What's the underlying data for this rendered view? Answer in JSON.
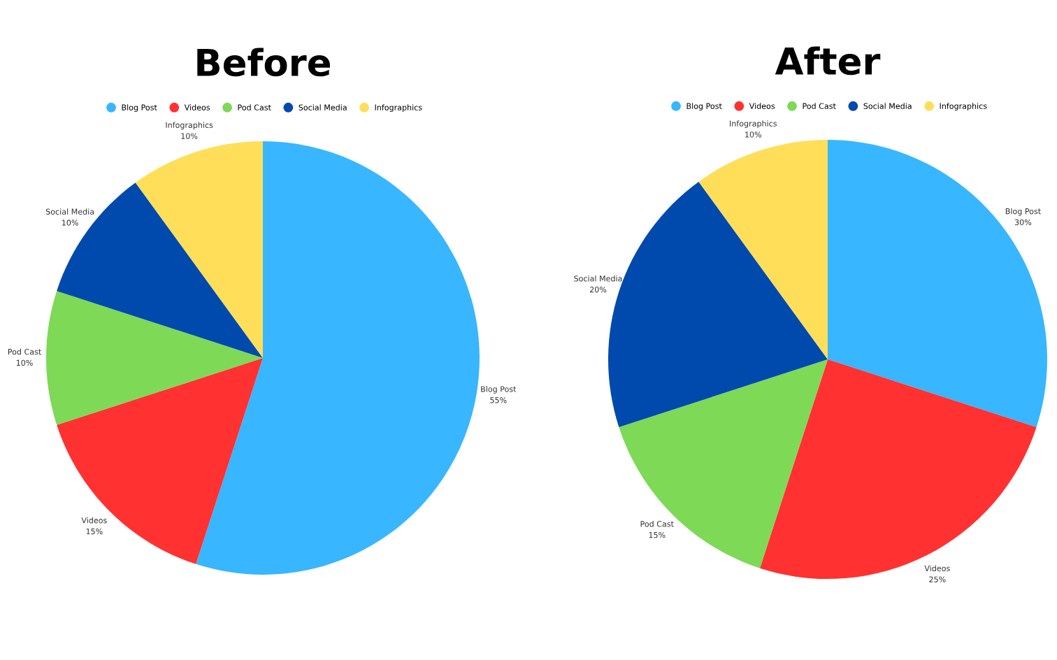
{
  "chart_data": [
    {
      "type": "pie",
      "title": "Before",
      "categories": [
        "Blog Post",
        "Videos",
        "Pod Cast",
        "Social Media",
        "Infographics"
      ],
      "values": [
        55,
        15,
        10,
        10,
        10
      ],
      "value_labels": [
        "55%",
        "15%",
        "10%",
        "10%",
        "10%"
      ],
      "colors": [
        "#38b6ff",
        "#ff3131",
        "#7ed957",
        "#004aad",
        "#ffde59"
      ],
      "legend": "top"
    },
    {
      "type": "pie",
      "title": "After",
      "categories": [
        "Blog Post",
        "Videos",
        "Pod Cast",
        "Social Media",
        "Infographics"
      ],
      "values": [
        30,
        25,
        15,
        20,
        10
      ],
      "value_labels": [
        "30%",
        "25%",
        "15%",
        "20%",
        "10%"
      ],
      "colors": [
        "#38b6ff",
        "#ff3131",
        "#7ed957",
        "#004aad",
        "#ffde59"
      ],
      "legend": "top"
    }
  ]
}
